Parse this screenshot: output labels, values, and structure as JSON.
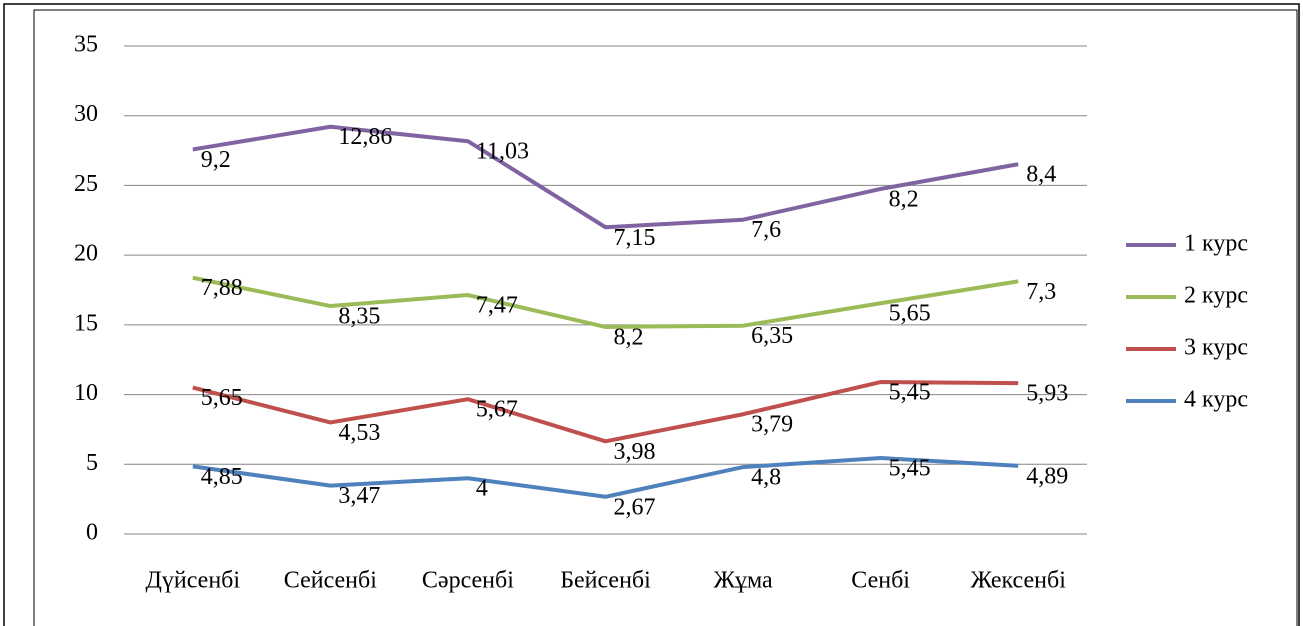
{
  "chart_data": {
    "type": "line",
    "stacked": true,
    "categories": [
      "Дүйсенбі",
      "Сейсенбі",
      "Сәрсенбі",
      "Бейсенбі",
      "Жұма",
      "Сенбі",
      "Жексенбі"
    ],
    "series": [
      {
        "name": "1 курс",
        "color": "#8064a2",
        "values": [
          9.2,
          12.86,
          11.03,
          7.15,
          7.6,
          8.2,
          8.4
        ],
        "value_labels": [
          "9,2",
          "12,86",
          "11,03",
          "7,15",
          "7,6",
          "8,2",
          "8,4"
        ]
      },
      {
        "name": "2 курс",
        "color": "#9bbb59",
        "values": [
          7.88,
          8.35,
          7.47,
          8.2,
          6.35,
          5.65,
          7.3
        ],
        "value_labels": [
          "7,88",
          "8,35",
          "7,47",
          "8,2",
          "6,35",
          "5,65",
          "7,3"
        ]
      },
      {
        "name": "3 курс",
        "color": "#c0504d",
        "values": [
          5.65,
          4.53,
          5.67,
          3.98,
          3.79,
          5.45,
          5.93
        ],
        "value_labels": [
          "5,65",
          "4,53",
          "5,67",
          "3,98",
          "3,79",
          "5,45",
          "5,93"
        ]
      },
      {
        "name": "4 курс",
        "color": "#4f81bd",
        "values": [
          4.85,
          3.47,
          4,
          2.67,
          4.8,
          5.45,
          4.89
        ],
        "value_labels": [
          "4,85",
          "3,47",
          "4",
          "2,67",
          "4,8",
          "5,45",
          "4,89"
        ]
      }
    ],
    "ylim": [
      0,
      35
    ],
    "yticks": [
      0,
      5,
      10,
      15,
      20,
      25,
      30,
      35
    ],
    "grid": true,
    "legend": "right"
  }
}
